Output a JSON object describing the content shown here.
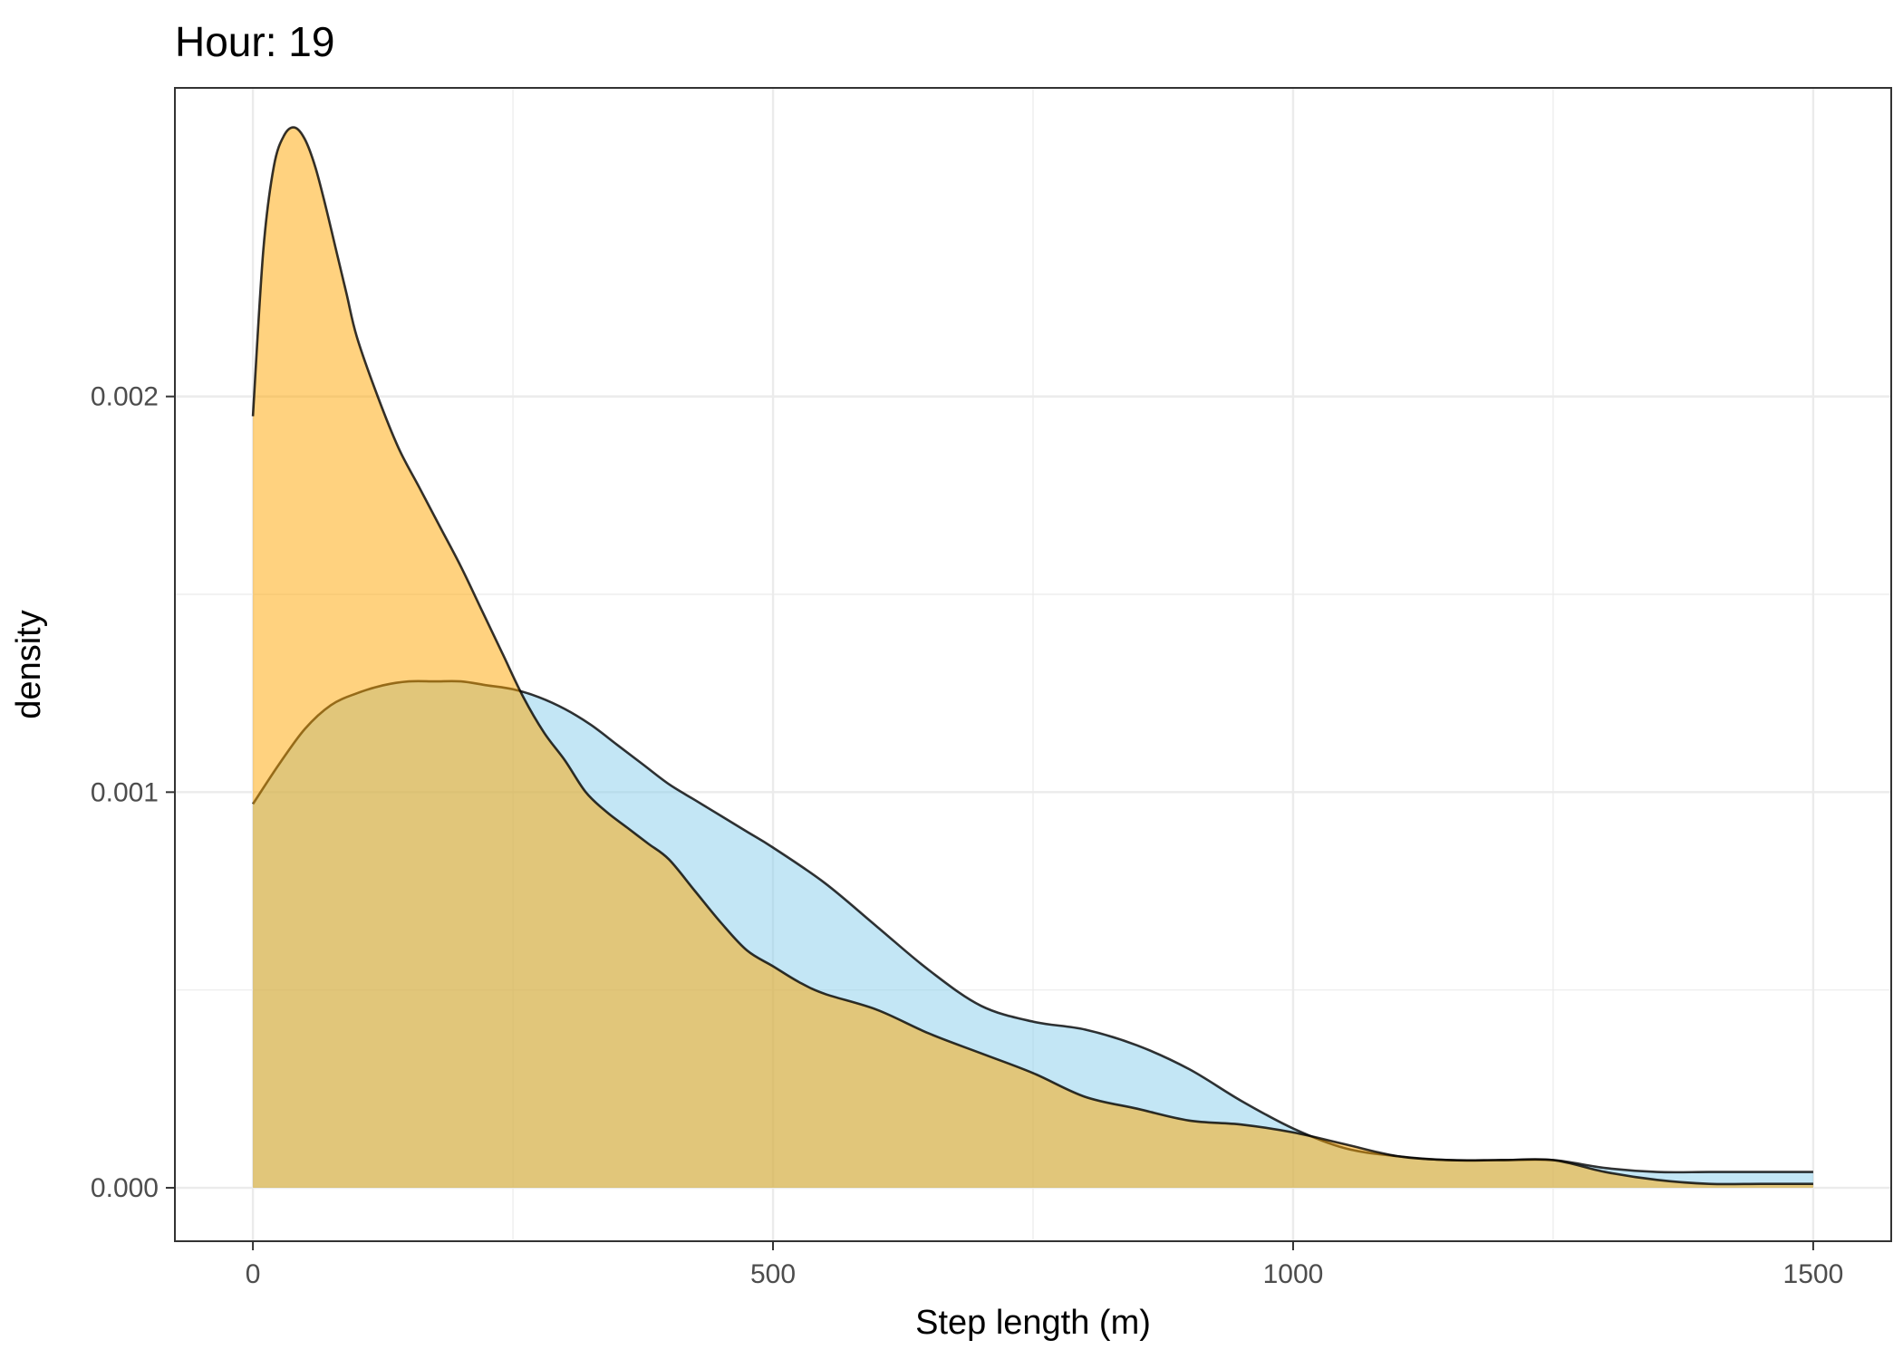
{
  "chart_data": {
    "type": "area",
    "title": "Hour: 19",
    "xlabel": "Step length (m)",
    "ylabel": "density",
    "xlim": [
      -75,
      1575
    ],
    "ylim": [
      -0.000135,
      0.00278
    ],
    "x_ticks": [
      0,
      500,
      1000,
      1500
    ],
    "x_tick_labels": [
      "0",
      "500",
      "1000",
      "1500"
    ],
    "y_ticks": [
      0.0,
      0.001,
      0.002
    ],
    "y_tick_labels": [
      "0.000",
      "0.001",
      "0.002"
    ],
    "grid": true,
    "legend": "none",
    "series": [
      {
        "color": "#87ceeb",
        "opacity": 0.5,
        "x": [
          0,
          25,
          50,
          75,
          100,
          125,
          150,
          175,
          200,
          225,
          250,
          275,
          300,
          325,
          350,
          375,
          400,
          425,
          450,
          475,
          500,
          550,
          600,
          650,
          700,
          750,
          800,
          850,
          900,
          950,
          1000,
          1050,
          1100,
          1150,
          1200,
          1250,
          1300,
          1350,
          1400,
          1450,
          1500
        ],
        "y": [
          0.00097,
          0.00107,
          0.00116,
          0.00122,
          0.00125,
          0.00127,
          0.00128,
          0.00128,
          0.00128,
          0.00127,
          0.00126,
          0.00124,
          0.00121,
          0.00117,
          0.00112,
          0.00107,
          0.00102,
          0.00098,
          0.00094,
          0.0009,
          0.00086,
          0.00077,
          0.00066,
          0.00055,
          0.00046,
          0.00042,
          0.0004,
          0.00036,
          0.0003,
          0.00022,
          0.00015,
          0.0001,
          8e-05,
          7e-05,
          7e-05,
          7e-05,
          5e-05,
          4e-05,
          4e-05,
          4e-05,
          4e-05
        ]
      },
      {
        "color": "#ffa500",
        "opacity": 0.5,
        "x": [
          0,
          10,
          20,
          30,
          40,
          50,
          60,
          70,
          80,
          90,
          100,
          120,
          140,
          160,
          180,
          200,
          220,
          240,
          260,
          280,
          300,
          320,
          340,
          360,
          380,
          400,
          425,
          450,
          475,
          500,
          525,
          550,
          600,
          650,
          700,
          750,
          800,
          850,
          900,
          950,
          1000,
          1050,
          1100,
          1150,
          1200,
          1250,
          1300,
          1350,
          1400,
          1450,
          1500
        ],
        "y": [
          0.00195,
          0.00237,
          0.00258,
          0.00266,
          0.00268,
          0.00265,
          0.00258,
          0.00248,
          0.00237,
          0.00226,
          0.00215,
          0.002,
          0.00187,
          0.00177,
          0.00167,
          0.00157,
          0.00146,
          0.00135,
          0.00124,
          0.00115,
          0.00108,
          0.001,
          0.00095,
          0.00091,
          0.00087,
          0.00083,
          0.00075,
          0.00067,
          0.0006,
          0.00056,
          0.00052,
          0.00049,
          0.00045,
          0.00039,
          0.00034,
          0.00029,
          0.00023,
          0.0002,
          0.00017,
          0.00016,
          0.00014,
          0.00011,
          8e-05,
          7e-05,
          7e-05,
          7e-05,
          4e-05,
          2e-05,
          1e-05,
          1e-05,
          1e-05
        ]
      }
    ]
  }
}
